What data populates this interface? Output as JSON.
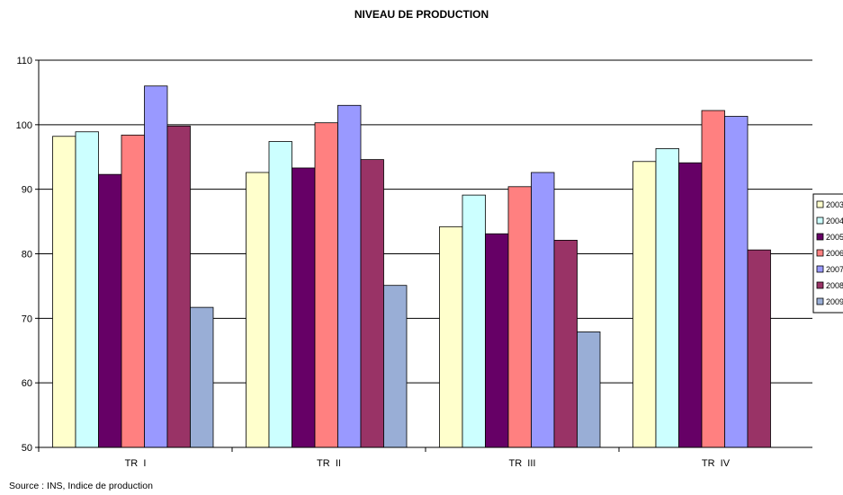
{
  "chart_data": {
    "type": "bar",
    "title": "NIVEAU DE PRODUCTION",
    "source": "Source : INS, Indice de production",
    "categories": [
      "TR  I",
      "TR  II",
      "TR  III",
      "TR  IV"
    ],
    "ylim": [
      50,
      110
    ],
    "yticks": [
      50,
      60,
      70,
      80,
      90,
      100,
      110
    ],
    "grid": true,
    "legend_position": "right",
    "series": [
      {
        "name": "2003",
        "color": "#ffffcc",
        "values": [
          98.2,
          92.6,
          84.2,
          94.3
        ]
      },
      {
        "name": "2004",
        "color": "#ccffff",
        "values": [
          98.9,
          97.4,
          89.1,
          96.3
        ]
      },
      {
        "name": "2005",
        "color": "#660066",
        "values": [
          92.3,
          93.3,
          83.1,
          94.1
        ]
      },
      {
        "name": "2006",
        "color": "#ff8080",
        "values": [
          98.4,
          100.3,
          90.4,
          102.2
        ]
      },
      {
        "name": "2007",
        "color": "#9999ff",
        "values": [
          106.0,
          103.0,
          92.6,
          101.3
        ]
      },
      {
        "name": "2008",
        "color": "#993366",
        "values": [
          99.8,
          94.6,
          82.1,
          80.6
        ]
      },
      {
        "name": "2009",
        "color": "#99aed6",
        "values": [
          71.7,
          75.1,
          67.9,
          null
        ]
      }
    ]
  }
}
